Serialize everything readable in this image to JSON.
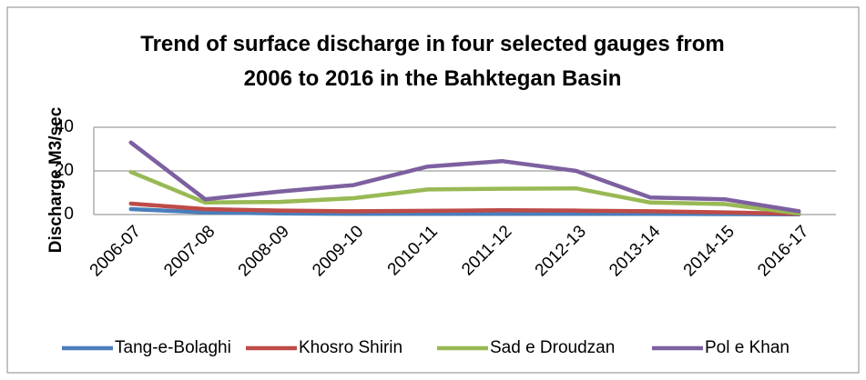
{
  "chart_data": {
    "type": "line",
    "title": "Trend of surface discharge in four selected gauges from 2006 to 2016 in the Bahktegan Basin",
    "y_label": "Discharge M3/sec",
    "categories": [
      "2006-07",
      "2007-08",
      "2008-09",
      "2009-10",
      "2010-11",
      "2011-12",
      "2012-13",
      "2013-14",
      "2014-15",
      "2016-17"
    ],
    "series": [
      {
        "name": "Tang-e-Bolaghi",
        "color": "#4a7ebb",
        "values": [
          2.5,
          1,
          0.5,
          0.3,
          0.3,
          0.3,
          0.3,
          0.3,
          0.2,
          0.1
        ]
      },
      {
        "name": "Khosro Shirin",
        "color": "#be4b48",
        "values": [
          5,
          2.5,
          1.8,
          1.5,
          1.7,
          2,
          1.8,
          1.5,
          1,
          0.3
        ]
      },
      {
        "name": "Sad e Droudzan",
        "color": "#98b954",
        "values": [
          19.5,
          5.5,
          5.8,
          7.5,
          11.5,
          11.8,
          12,
          5.5,
          4.8,
          0.5
        ]
      },
      {
        "name": "Pol e Khan",
        "color": "#7d60a0",
        "values": [
          33,
          7,
          10.5,
          13.5,
          22,
          24.5,
          20,
          7.8,
          7,
          1.5
        ]
      }
    ],
    "ylim": [
      0,
      40
    ],
    "yticks": [
      0,
      20,
      40
    ],
    "grid": true,
    "legend": "bottom"
  }
}
